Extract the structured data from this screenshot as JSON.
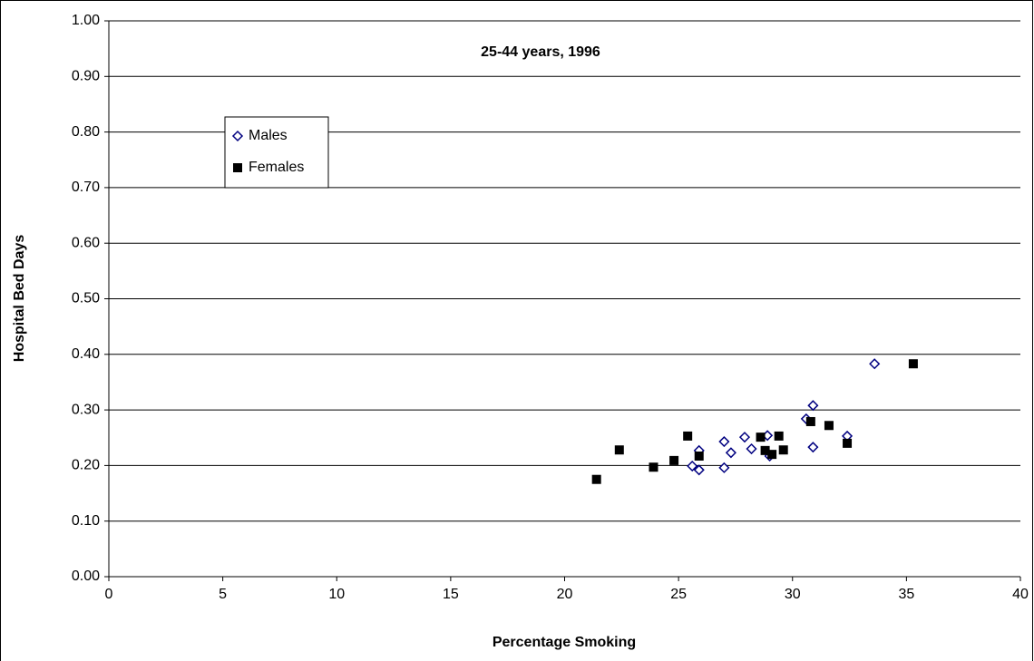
{
  "chart_data": {
    "type": "scatter",
    "title": "25-44 years, 1996",
    "x_label": "Percentage Smoking",
    "y_label": "Hospital Bed Days",
    "xlim": [
      0,
      40
    ],
    "xticks": [
      0,
      5,
      10,
      15,
      20,
      25,
      30,
      35,
      40
    ],
    "ylim": [
      0,
      1
    ],
    "yticks": [
      {
        "value": 0,
        "label": "0.00"
      },
      {
        "value": 0.1,
        "label": "0.10"
      },
      {
        "value": 0.2,
        "label": "0.20"
      },
      {
        "value": 0.3,
        "label": "0.30"
      },
      {
        "value": 0.4,
        "label": "0.40"
      },
      {
        "value": 0.5,
        "label": "0.50"
      },
      {
        "value": 0.6,
        "label": "0.60"
      },
      {
        "value": 0.7,
        "label": "0.70"
      },
      {
        "value": 0.8,
        "label": "0.80"
      },
      {
        "value": 0.9,
        "label": "0.90"
      },
      {
        "value": 1,
        "label": "1.00"
      }
    ],
    "grid": true,
    "legend": "upper left",
    "series": [
      {
        "name": "Males",
        "color": "#000080",
        "marker": "diamond",
        "x": [
          33.6,
          30.9,
          30.6,
          30.9,
          32.4,
          28.9,
          29.0,
          27.9,
          28.2,
          27.0,
          27.3,
          27.0,
          25.9,
          25.6,
          25.9
        ],
        "values": [
          0.383,
          0.308,
          0.284,
          0.233,
          0.253,
          0.254,
          0.217,
          0.251,
          0.23,
          0.243,
          0.223,
          0.196,
          0.227,
          0.199,
          0.192
        ]
      },
      {
        "name": "Females",
        "color": "#000000",
        "marker": "square",
        "x": [
          35.3,
          31.6,
          30.8,
          32.4,
          29.4,
          28.6,
          28.8,
          29.1,
          29.6,
          25.4,
          25.9,
          21.4,
          22.4,
          23.9,
          24.8
        ],
        "values": [
          0.383,
          0.272,
          0.279,
          0.24,
          0.253,
          0.251,
          0.227,
          0.22,
          0.228,
          0.253,
          0.217,
          0.175,
          0.228,
          0.197,
          0.209
        ]
      }
    ]
  }
}
